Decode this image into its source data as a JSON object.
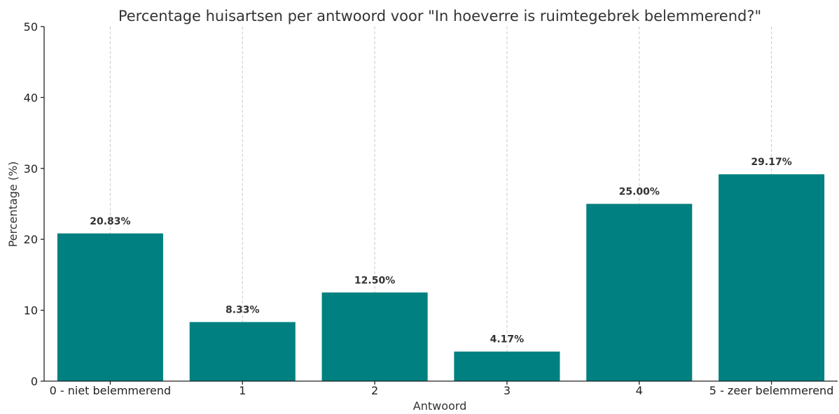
{
  "chart_data": {
    "type": "bar",
    "title": "Percentage huisartsen per antwoord voor \"In hoeverre is ruimtegebrek belemmerend?\"",
    "xlabel": "Antwoord",
    "ylabel": "Percentage (%)",
    "categories": [
      "0 - niet belemmerend",
      "1",
      "2",
      "3",
      "4",
      "5 - zeer belemmerend"
    ],
    "values": [
      20.83,
      8.33,
      12.5,
      4.17,
      25.0,
      29.17
    ],
    "value_labels": [
      "20.83%",
      "8.33%",
      "12.50%",
      "4.17%",
      "25.00%",
      "29.17%"
    ],
    "ylim": [
      0,
      50
    ],
    "yticks": [
      0,
      10,
      20,
      30,
      40,
      50
    ],
    "ytick_labels": [
      "0",
      "10",
      "20",
      "30",
      "40",
      "50"
    ],
    "grid": "x-axis dashed",
    "bar_color": "#008080",
    "legend": "none"
  }
}
